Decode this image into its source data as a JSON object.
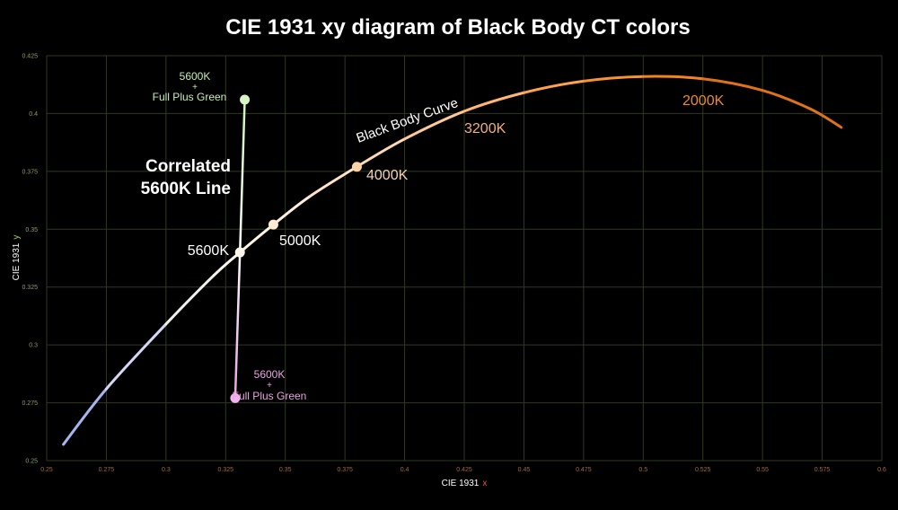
{
  "chart_data": {
    "type": "line",
    "title": "CIE 1931 xy diagram of Black Body CT colors",
    "xlabel": {
      "prefix": "CIE 1931",
      "var": "x"
    },
    "ylabel": {
      "prefix": "CIE 1931",
      "var": "y"
    },
    "xlim": [
      0.25,
      0.6
    ],
    "ylim": [
      0.25,
      0.425
    ],
    "xticks": [
      "0.25",
      "0.275",
      "0.3",
      "0.325",
      "0.35",
      "0.375",
      "0.4",
      "0.425",
      "0.45",
      "0.475",
      "0.5",
      "0.525",
      "0.55",
      "0.575",
      "0.6"
    ],
    "yticks": [
      "0.25",
      "0.275",
      "0.3",
      "0.325",
      "0.35",
      "0.375",
      "0.4",
      "0.425"
    ],
    "grid": true,
    "series": [
      {
        "label": "Black Body Curve",
        "x": [
          0.257,
          0.275,
          0.3,
          0.32,
          0.331,
          0.345,
          0.36,
          0.38,
          0.4,
          0.425,
          0.45,
          0.475,
          0.5,
          0.525,
          0.55,
          0.57,
          0.583
        ],
        "y": [
          0.257,
          0.281,
          0.309,
          0.33,
          0.34,
          0.352,
          0.364,
          0.377,
          0.389,
          0.401,
          0.409,
          0.414,
          0.416,
          0.415,
          0.41,
          0.402,
          0.394
        ],
        "colors": [
          "#a8b4f0",
          "#d4d8f4",
          "#f2f0ee",
          "#fbf7ec",
          "#fff4e4",
          "#ffeedd",
          "#ffe3c6",
          "#ffd9b3",
          "#ffc997",
          "#ffb673",
          "#ffa24e",
          "#f79332",
          "#ee8422",
          "#e07218"
        ]
      }
    ],
    "correlated_line": {
      "label": [
        "Correlated",
        "5600K Line"
      ],
      "x": [
        0.333,
        0.331,
        0.329
      ],
      "y": [
        0.406,
        0.34,
        0.277
      ],
      "top_color": "#ccf2b4",
      "bottom_color": "#e8a2e2"
    },
    "points": [
      {
        "label": "5600K",
        "x": 0.331,
        "y": 0.34,
        "color": "#fbf6ec"
      },
      {
        "label": "5000K",
        "x": 0.345,
        "y": 0.352,
        "color": "#ffead3"
      },
      {
        "label": "4000K",
        "x": 0.38,
        "y": 0.377,
        "color": "#ffd2a8"
      },
      {
        "label": "5600K + Full Plus Green (top)",
        "x": 0.333,
        "y": 0.406,
        "color": "#d6f5c2"
      },
      {
        "label": "5600K + Full Plus Green (bottom)",
        "x": 0.329,
        "y": 0.277,
        "color": "#f2b2ee"
      }
    ],
    "annotations": [
      {
        "text": "Black Body Curve",
        "color": "#ffffff"
      },
      {
        "text": "5600K",
        "color": "#ffffff"
      },
      {
        "text": "5000K",
        "color": "#ffffff"
      },
      {
        "text": "4000K",
        "color": "#f6d2b2"
      },
      {
        "text": "3200K",
        "color": "#f3b07a"
      },
      {
        "text": "2000K",
        "color": "#ed8a30"
      },
      {
        "text": "5600K",
        "color": "#c8edb0"
      },
      {
        "text": "+",
        "color": "#c8edb0"
      },
      {
        "text": "Full Plus Green",
        "color": "#c8edb0"
      },
      {
        "text": "5600K",
        "color": "#e8a2e2"
      },
      {
        "text": "+",
        "color": "#e8a2e2"
      },
      {
        "text": "Full Plus Green",
        "color": "#e8a2e2"
      },
      {
        "text": "Correlated",
        "color": "#ffffff"
      },
      {
        "text": "5600K Line",
        "color": "#ffffff"
      }
    ],
    "colors": {
      "background": "#000000",
      "grid": "#2d3a22",
      "tick_x": "#a06a4a",
      "tick_y": "#8aa060",
      "axis_label": "#ffffff",
      "axis_var_x": "#e8503c",
      "axis_var_y": "#a2c262"
    }
  }
}
